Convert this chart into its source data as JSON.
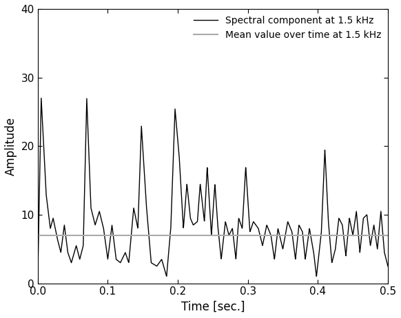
{
  "mean_value": 7.0,
  "xlim": [
    0,
    0.5
  ],
  "ylim": [
    0,
    40
  ],
  "xticks": [
    0,
    0.1,
    0.2,
    0.3,
    0.4,
    0.5
  ],
  "yticks": [
    0,
    10,
    20,
    30,
    40
  ],
  "xlabel": "Time [sec.]",
  "ylabel": "Amplitude",
  "signal_color": "#000000",
  "mean_color": "#aaaaaa",
  "signal_label": "Spectral component at 1.5 kHz",
  "mean_label": "Mean value over time at 1.5 kHz",
  "signal_linewidth": 1.0,
  "mean_linewidth": 1.5,
  "background_color": "#ffffff",
  "legend_fontsize": 10,
  "axis_fontsize": 12,
  "tick_fontsize": 11,
  "signal_points": [
    [
      0.0,
      0.5
    ],
    [
      0.005,
      27.0
    ],
    [
      0.012,
      13.0
    ],
    [
      0.018,
      8.0
    ],
    [
      0.022,
      9.5
    ],
    [
      0.028,
      6.5
    ],
    [
      0.033,
      4.5
    ],
    [
      0.038,
      8.5
    ],
    [
      0.043,
      4.5
    ],
    [
      0.048,
      3.0
    ],
    [
      0.055,
      5.5
    ],
    [
      0.06,
      3.5
    ],
    [
      0.065,
      5.5
    ],
    [
      0.07,
      27.0
    ],
    [
      0.076,
      11.0
    ],
    [
      0.082,
      8.5
    ],
    [
      0.088,
      10.5
    ],
    [
      0.094,
      8.0
    ],
    [
      0.1,
      3.5
    ],
    [
      0.106,
      8.5
    ],
    [
      0.112,
      3.5
    ],
    [
      0.118,
      3.0
    ],
    [
      0.125,
      4.5
    ],
    [
      0.13,
      3.0
    ],
    [
      0.137,
      11.0
    ],
    [
      0.143,
      8.0
    ],
    [
      0.148,
      23.0
    ],
    [
      0.155,
      11.5
    ],
    [
      0.162,
      3.0
    ],
    [
      0.17,
      2.5
    ],
    [
      0.177,
      3.5
    ],
    [
      0.184,
      1.0
    ],
    [
      0.19,
      8.0
    ],
    [
      0.196,
      25.5
    ],
    [
      0.202,
      18.5
    ],
    [
      0.208,
      8.0
    ],
    [
      0.213,
      14.5
    ],
    [
      0.218,
      9.5
    ],
    [
      0.222,
      8.5
    ],
    [
      0.228,
      9.0
    ],
    [
      0.232,
      14.5
    ],
    [
      0.238,
      9.0
    ],
    [
      0.242,
      17.0
    ],
    [
      0.248,
      7.0
    ],
    [
      0.253,
      14.5
    ],
    [
      0.257,
      8.5
    ],
    [
      0.262,
      3.5
    ],
    [
      0.268,
      9.0
    ],
    [
      0.273,
      7.0
    ],
    [
      0.278,
      8.0
    ],
    [
      0.283,
      3.5
    ],
    [
      0.287,
      9.5
    ],
    [
      0.292,
      8.0
    ],
    [
      0.297,
      17.0
    ],
    [
      0.303,
      7.5
    ],
    [
      0.308,
      9.0
    ],
    [
      0.315,
      8.0
    ],
    [
      0.321,
      5.5
    ],
    [
      0.327,
      8.5
    ],
    [
      0.333,
      7.0
    ],
    [
      0.338,
      3.5
    ],
    [
      0.343,
      8.0
    ],
    [
      0.35,
      5.0
    ],
    [
      0.357,
      9.0
    ],
    [
      0.363,
      7.5
    ],
    [
      0.368,
      3.5
    ],
    [
      0.373,
      8.5
    ],
    [
      0.378,
      7.5
    ],
    [
      0.382,
      3.5
    ],
    [
      0.388,
      8.0
    ],
    [
      0.394,
      4.5
    ],
    [
      0.398,
      1.0
    ],
    [
      0.405,
      7.5
    ],
    [
      0.41,
      19.5
    ],
    [
      0.415,
      9.0
    ],
    [
      0.42,
      3.0
    ],
    [
      0.425,
      5.0
    ],
    [
      0.43,
      9.5
    ],
    [
      0.435,
      8.5
    ],
    [
      0.44,
      4.0
    ],
    [
      0.445,
      9.5
    ],
    [
      0.45,
      7.0
    ],
    [
      0.455,
      10.5
    ],
    [
      0.46,
      4.5
    ],
    [
      0.465,
      9.5
    ],
    [
      0.47,
      10.0
    ],
    [
      0.475,
      5.5
    ],
    [
      0.48,
      8.5
    ],
    [
      0.485,
      5.0
    ],
    [
      0.49,
      10.5
    ],
    [
      0.495,
      4.5
    ],
    [
      0.5,
      2.5
    ]
  ]
}
